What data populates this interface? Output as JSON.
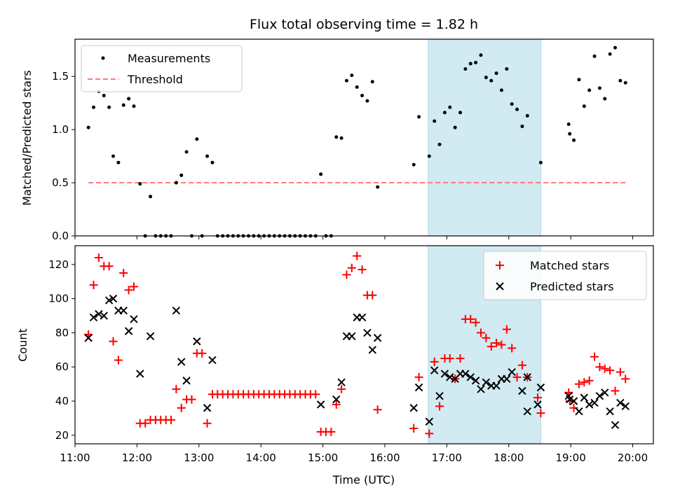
{
  "chart_data": [
    {
      "type": "scatter",
      "title": "Flux total observing time = 1.82 h",
      "xlabel": "",
      "ylabel": "Matched/Predicted stars",
      "xlim": [
        "11:00",
        "20:20"
      ],
      "ylim": [
        0,
        1.85
      ],
      "x_ticks": [
        "11:00",
        "12:00",
        "13:00",
        "14:00",
        "15:00",
        "16:00",
        "17:00",
        "18:00",
        "19:00",
        "20:00"
      ],
      "x_tick_labels_shown": false,
      "y_ticks": [
        "0.0",
        "0.5",
        "1.0",
        "1.5"
      ],
      "grid": false,
      "legend_position": "top-left",
      "shaded_interval": {
        "x_start": "16:42",
        "x_end": "18:31",
        "color": "#add8e6"
      },
      "series": [
        {
          "name": "Measurements",
          "marker": "dot",
          "color": "#000000",
          "points": [
            [
              "11:13",
              1.02
            ],
            [
              "11:18",
              1.21
            ],
            [
              "11:23",
              1.36
            ],
            [
              "11:28",
              1.32
            ],
            [
              "11:33",
              1.21
            ],
            [
              "11:37",
              0.75
            ],
            [
              "11:42",
              0.69
            ],
            [
              "11:47",
              1.23
            ],
            [
              "11:52",
              1.29
            ],
            [
              "11:57",
              1.22
            ],
            [
              "12:03",
              0.49
            ],
            [
              "12:08",
              0.0
            ],
            [
              "12:13",
              0.37
            ],
            [
              "12:18",
              0.0
            ],
            [
              "12:23",
              0.0
            ],
            [
              "12:28",
              0.0
            ],
            [
              "12:33",
              0.0
            ],
            [
              "12:38",
              0.5
            ],
            [
              "12:43",
              0.57
            ],
            [
              "12:48",
              0.79
            ],
            [
              "12:53",
              0.0
            ],
            [
              "12:58",
              0.91
            ],
            [
              "13:03",
              0.0
            ],
            [
              "13:08",
              0.75
            ],
            [
              "13:13",
              0.69
            ],
            [
              "13:18",
              0.0
            ],
            [
              "13:23",
              0.0
            ],
            [
              "13:28",
              0.0
            ],
            [
              "13:33",
              0.0
            ],
            [
              "13:38",
              0.0
            ],
            [
              "13:43",
              0.0
            ],
            [
              "13:48",
              0.0
            ],
            [
              "13:53",
              0.0
            ],
            [
              "13:58",
              0.0
            ],
            [
              "14:03",
              0.0
            ],
            [
              "14:08",
              0.0
            ],
            [
              "14:13",
              0.0
            ],
            [
              "14:18",
              0.0
            ],
            [
              "14:23",
              0.0
            ],
            [
              "14:28",
              0.0
            ],
            [
              "14:33",
              0.0
            ],
            [
              "14:38",
              0.0
            ],
            [
              "14:43",
              0.0
            ],
            [
              "14:48",
              0.0
            ],
            [
              "14:53",
              0.0
            ],
            [
              "14:58",
              0.58
            ],
            [
              "15:03",
              0.0
            ],
            [
              "15:08",
              0.0
            ],
            [
              "15:13",
              0.93
            ],
            [
              "15:18",
              0.92
            ],
            [
              "15:23",
              1.46
            ],
            [
              "15:28",
              1.51
            ],
            [
              "15:33",
              1.4
            ],
            [
              "15:38",
              1.32
            ],
            [
              "15:43",
              1.27
            ],
            [
              "15:48",
              1.45
            ],
            [
              "15:53",
              0.46
            ],
            [
              "16:28",
              0.67
            ],
            [
              "16:33",
              1.12
            ],
            [
              "16:43",
              0.75
            ],
            [
              "16:48",
              1.08
            ],
            [
              "16:53",
              0.86
            ],
            [
              "16:58",
              1.16
            ],
            [
              "17:03",
              1.21
            ],
            [
              "17:08",
              1.02
            ],
            [
              "17:13",
              1.16
            ],
            [
              "17:18",
              1.57
            ],
            [
              "17:23",
              1.62
            ],
            [
              "17:28",
              1.63
            ],
            [
              "17:33",
              1.7
            ],
            [
              "17:38",
              1.49
            ],
            [
              "17:43",
              1.46
            ],
            [
              "17:48",
              1.53
            ],
            [
              "17:53",
              1.37
            ],
            [
              "17:58",
              1.57
            ],
            [
              "18:03",
              1.24
            ],
            [
              "18:08",
              1.19
            ],
            [
              "18:13",
              1.03
            ],
            [
              "18:18",
              1.13
            ],
            [
              "18:31",
              0.69
            ],
            [
              "18:58",
              1.05
            ],
            [
              "18:59",
              0.96
            ],
            [
              "19:03",
              0.9
            ],
            [
              "19:08",
              1.47
            ],
            [
              "19:13",
              1.22
            ],
            [
              "19:18",
              1.37
            ],
            [
              "19:23",
              1.69
            ],
            [
              "19:28",
              1.39
            ],
            [
              "19:33",
              1.29
            ],
            [
              "19:38",
              1.71
            ],
            [
              "19:43",
              1.77
            ],
            [
              "19:48",
              1.46
            ],
            [
              "19:53",
              1.44
            ]
          ]
        },
        {
          "name": "Threshold",
          "marker": "dashed-line",
          "color": "#ff7b7b",
          "points": [
            [
              "11:13",
              0.5
            ],
            [
              "19:53",
              0.5
            ]
          ]
        }
      ]
    },
    {
      "type": "scatter",
      "title": "",
      "xlabel": "Time (UTC)",
      "ylabel": "Count",
      "xlim": [
        "11:00",
        "20:20"
      ],
      "ylim": [
        15,
        131
      ],
      "x_ticks": [
        "11:00",
        "12:00",
        "13:00",
        "14:00",
        "15:00",
        "16:00",
        "17:00",
        "18:00",
        "19:00",
        "20:00"
      ],
      "y_ticks": [
        "20",
        "40",
        "60",
        "80",
        "100",
        "120"
      ],
      "grid": false,
      "legend_position": "top-right",
      "shaded_interval": {
        "x_start": "16:42",
        "x_end": "18:31",
        "color": "#add8e6"
      },
      "series": [
        {
          "name": "Matched stars",
          "marker": "plus",
          "color": "#ff0000",
          "points": [
            [
              "11:13",
              79
            ],
            [
              "11:18",
              108
            ],
            [
              "11:23",
              124
            ],
            [
              "11:28",
              119
            ],
            [
              "11:33",
              119
            ],
            [
              "11:37",
              75
            ],
            [
              "11:42",
              64
            ],
            [
              "11:47",
              115
            ],
            [
              "11:52",
              105
            ],
            [
              "11:57",
              107
            ],
            [
              "12:03",
              27
            ],
            [
              "12:08",
              27
            ],
            [
              "12:13",
              29
            ],
            [
              "12:18",
              29
            ],
            [
              "12:23",
              29
            ],
            [
              "12:28",
              29
            ],
            [
              "12:33",
              29
            ],
            [
              "12:38",
              47
            ],
            [
              "12:43",
              36
            ],
            [
              "12:48",
              41
            ],
            [
              "12:53",
              41
            ],
            [
              "12:58",
              68
            ],
            [
              "13:03",
              68
            ],
            [
              "13:08",
              27
            ],
            [
              "13:13",
              44
            ],
            [
              "13:18",
              44
            ],
            [
              "13:23",
              44
            ],
            [
              "13:28",
              44
            ],
            [
              "13:33",
              44
            ],
            [
              "13:38",
              44
            ],
            [
              "13:43",
              44
            ],
            [
              "13:48",
              44
            ],
            [
              "13:53",
              44
            ],
            [
              "13:58",
              44
            ],
            [
              "14:03",
              44
            ],
            [
              "14:08",
              44
            ],
            [
              "14:13",
              44
            ],
            [
              "14:18",
              44
            ],
            [
              "14:23",
              44
            ],
            [
              "14:28",
              44
            ],
            [
              "14:33",
              44
            ],
            [
              "14:38",
              44
            ],
            [
              "14:43",
              44
            ],
            [
              "14:48",
              44
            ],
            [
              "14:53",
              44
            ],
            [
              "14:58",
              22
            ],
            [
              "15:03",
              22
            ],
            [
              "15:08",
              22
            ],
            [
              "15:13",
              38
            ],
            [
              "15:18",
              47
            ],
            [
              "15:23",
              114
            ],
            [
              "15:28",
              118
            ],
            [
              "15:33",
              125
            ],
            [
              "15:38",
              117
            ],
            [
              "15:43",
              102
            ],
            [
              "15:48",
              102
            ],
            [
              "15:53",
              35
            ],
            [
              "16:28",
              24
            ],
            [
              "16:33",
              54
            ],
            [
              "16:43",
              21
            ],
            [
              "16:48",
              63
            ],
            [
              "16:53",
              37
            ],
            [
              "16:58",
              65
            ],
            [
              "17:03",
              65
            ],
            [
              "17:08",
              53
            ],
            [
              "17:13",
              65
            ],
            [
              "17:18",
              88
            ],
            [
              "17:23",
              88
            ],
            [
              "17:28",
              86
            ],
            [
              "17:33",
              80
            ],
            [
              "17:38",
              77
            ],
            [
              "17:43",
              72
            ],
            [
              "17:48",
              74
            ],
            [
              "17:53",
              73
            ],
            [
              "17:58",
              82
            ],
            [
              "18:03",
              71
            ],
            [
              "18:08",
              54
            ],
            [
              "18:13",
              61
            ],
            [
              "18:18",
              54
            ],
            [
              "18:28",
              42
            ],
            [
              "18:31",
              33
            ],
            [
              "18:58",
              45
            ],
            [
              "18:59",
              40
            ],
            [
              "19:03",
              36
            ],
            [
              "19:08",
              50
            ],
            [
              "19:13",
              51
            ],
            [
              "19:18",
              52
            ],
            [
              "19:23",
              66
            ],
            [
              "19:28",
              60
            ],
            [
              "19:33",
              59
            ],
            [
              "19:38",
              58
            ],
            [
              "19:43",
              46
            ],
            [
              "19:48",
              57
            ],
            [
              "19:53",
              53
            ]
          ]
        },
        {
          "name": "Predicted stars",
          "marker": "x",
          "color": "#000000",
          "points": [
            [
              "11:13",
              77
            ],
            [
              "11:18",
              89
            ],
            [
              "11:23",
              91
            ],
            [
              "11:28",
              90
            ],
            [
              "11:33",
              99
            ],
            [
              "11:37",
              100
            ],
            [
              "11:42",
              93
            ],
            [
              "11:47",
              93
            ],
            [
              "11:52",
              81
            ],
            [
              "11:57",
              88
            ],
            [
              "12:03",
              56
            ],
            [
              "12:13",
              78
            ],
            [
              "12:38",
              93
            ],
            [
              "12:43",
              63
            ],
            [
              "12:48",
              52
            ],
            [
              "12:58",
              75
            ],
            [
              "13:08",
              36
            ],
            [
              "13:13",
              64
            ],
            [
              "14:58",
              38
            ],
            [
              "15:13",
              41
            ],
            [
              "15:18",
              51
            ],
            [
              "15:23",
              78
            ],
            [
              "15:28",
              78
            ],
            [
              "15:33",
              89
            ],
            [
              "15:38",
              89
            ],
            [
              "15:43",
              80
            ],
            [
              "15:48",
              70
            ],
            [
              "15:53",
              77
            ],
            [
              "16:28",
              36
            ],
            [
              "16:33",
              48
            ],
            [
              "16:43",
              28
            ],
            [
              "16:48",
              58
            ],
            [
              "16:53",
              43
            ],
            [
              "16:58",
              56
            ],
            [
              "17:03",
              54
            ],
            [
              "17:08",
              53
            ],
            [
              "17:13",
              56
            ],
            [
              "17:18",
              56
            ],
            [
              "17:23",
              54
            ],
            [
              "17:28",
              52
            ],
            [
              "17:33",
              47
            ],
            [
              "17:38",
              51
            ],
            [
              "17:43",
              49
            ],
            [
              "17:48",
              49
            ],
            [
              "17:53",
              53
            ],
            [
              "17:58",
              53
            ],
            [
              "18:03",
              57
            ],
            [
              "18:13",
              46
            ],
            [
              "18:18",
              34
            ],
            [
              "18:18",
              54
            ],
            [
              "18:28",
              38
            ],
            [
              "18:31",
              48
            ],
            [
              "18:58",
              43
            ],
            [
              "18:59",
              41
            ],
            [
              "19:03",
              40
            ],
            [
              "19:08",
              34
            ],
            [
              "19:13",
              42
            ],
            [
              "19:18",
              38
            ],
            [
              "19:23",
              39
            ],
            [
              "19:28",
              43
            ],
            [
              "19:33",
              45
            ],
            [
              "19:38",
              34
            ],
            [
              "19:43",
              26
            ],
            [
              "19:48",
              39
            ],
            [
              "19:53",
              37
            ]
          ]
        }
      ]
    }
  ]
}
